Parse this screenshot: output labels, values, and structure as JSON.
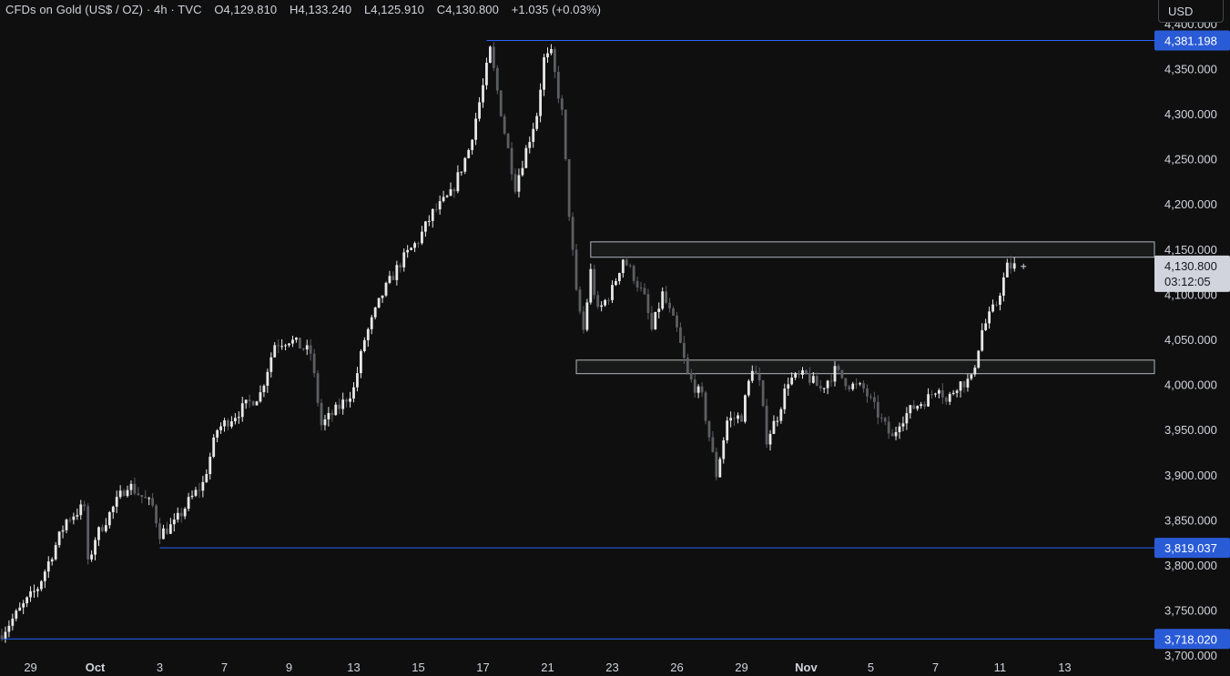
{
  "legend": {
    "symbol": "CFDs on Gold (US$ / OZ)",
    "interval": "4h",
    "source": "TVC",
    "open": "O4,129.810",
    "high": "H4,133.240",
    "low": "L4,125.910",
    "close": "C4,130.800",
    "change": "+1.035 (+0.03%)"
  },
  "currency": "USD",
  "colors": {
    "background": "#0f0f0f",
    "up": "#e8e8e8",
    "down": "#5d5e63",
    "hline": "#2962ff",
    "label_blue": "#2a5bd7",
    "zone": "#b2b5be",
    "text": "#d1d4dc"
  },
  "chart_data": {
    "type": "candlestick",
    "y_axis": {
      "range": [
        3677,
        4426
      ],
      "ticks": [
        "4,400.000",
        "4,350.000",
        "4,300.000",
        "4,250.000",
        "4,200.000",
        "4,150.000",
        "4,100.000",
        "4,050.000",
        "4,000.000",
        "3,950.000",
        "3,900.000",
        "3,850.000",
        "3,800.000",
        "3,750.000",
        "3,700.000"
      ],
      "tick_values": [
        4400,
        4350,
        4300,
        4250,
        4200,
        4150,
        4100,
        4050,
        4000,
        3950,
        3900,
        3850,
        3800,
        3750,
        3700
      ]
    },
    "x_axis": {
      "ticks": [
        "29",
        "Oct",
        "3",
        "7",
        "9",
        "13",
        "15",
        "17",
        "21",
        "23",
        "26",
        "29",
        "Nov",
        "5",
        "7",
        "11",
        "13"
      ],
      "tick_index": [
        8,
        26,
        44,
        62,
        80,
        98,
        116,
        134,
        152,
        170,
        188,
        206,
        224,
        242,
        260,
        278,
        296
      ],
      "bars_total": 320
    },
    "horizontal_lines": [
      {
        "value": 4381.198,
        "label": "4,381.198",
        "start_index": 135
      },
      {
        "value": 3819.037,
        "label": "3,819.037",
        "start_index": 44
      },
      {
        "value": 3718.02,
        "label": "3,718.020",
        "start_index": 0
      }
    ],
    "zones": [
      {
        "top": 4158,
        "bottom": 4141,
        "start_index": 164
      },
      {
        "top": 4027,
        "bottom": 4012,
        "start_index": 160
      }
    ],
    "last_price": {
      "value": 4130.8,
      "label": "4,130.800",
      "countdown": "03:12:05"
    },
    "anchors": [
      [
        0,
        3725
      ],
      [
        10,
        3775
      ],
      [
        18,
        3850
      ],
      [
        23,
        3865
      ],
      [
        24,
        3800
      ],
      [
        26,
        3830
      ],
      [
        35,
        3890
      ],
      [
        42,
        3865
      ],
      [
        44,
        3835
      ],
      [
        48,
        3845
      ],
      [
        52,
        3870
      ],
      [
        56,
        3890
      ],
      [
        60,
        3950
      ],
      [
        66,
        3970
      ],
      [
        72,
        3990
      ],
      [
        76,
        4045
      ],
      [
        80,
        4050
      ],
      [
        86,
        4035
      ],
      [
        89,
        3955
      ],
      [
        94,
        3975
      ],
      [
        98,
        3995
      ],
      [
        101,
        4050
      ],
      [
        106,
        4100
      ],
      [
        111,
        4135
      ],
      [
        116,
        4160
      ],
      [
        120,
        4190
      ],
      [
        125,
        4210
      ],
      [
        130,
        4260
      ],
      [
        134,
        4330
      ],
      [
        136,
        4370
      ],
      [
        140,
        4280
      ],
      [
        143,
        4220
      ],
      [
        146,
        4260
      ],
      [
        149,
        4300
      ],
      [
        151,
        4360
      ],
      [
        153,
        4365
      ],
      [
        156,
        4300
      ],
      [
        158,
        4190
      ],
      [
        160,
        4100
      ],
      [
        162,
        4060
      ],
      [
        164,
        4125
      ],
      [
        166,
        4080
      ],
      [
        170,
        4105
      ],
      [
        173,
        4140
      ],
      [
        176,
        4120
      ],
      [
        179,
        4095
      ],
      [
        181,
        4060
      ],
      [
        184,
        4100
      ],
      [
        188,
        4060
      ],
      [
        191,
        4010
      ],
      [
        195,
        3985
      ],
      [
        199,
        3900
      ],
      [
        202,
        3960
      ],
      [
        206,
        3965
      ],
      [
        209,
        4020
      ],
      [
        211,
        4000
      ],
      [
        213,
        3940
      ],
      [
        216,
        3965
      ],
      [
        219,
        4005
      ],
      [
        224,
        4010
      ],
      [
        228,
        3995
      ],
      [
        232,
        4015
      ],
      [
        236,
        4000
      ],
      [
        240,
        3995
      ],
      [
        245,
        3960
      ],
      [
        248,
        3940
      ],
      [
        250,
        3960
      ],
      [
        254,
        3975
      ],
      [
        258,
        3985
      ],
      [
        261,
        4000
      ],
      [
        263,
        3980
      ],
      [
        266,
        4000
      ],
      [
        270,
        4005
      ],
      [
        273,
        4060
      ],
      [
        277,
        4090
      ],
      [
        280,
        4130
      ],
      [
        282,
        4131
      ]
    ]
  }
}
